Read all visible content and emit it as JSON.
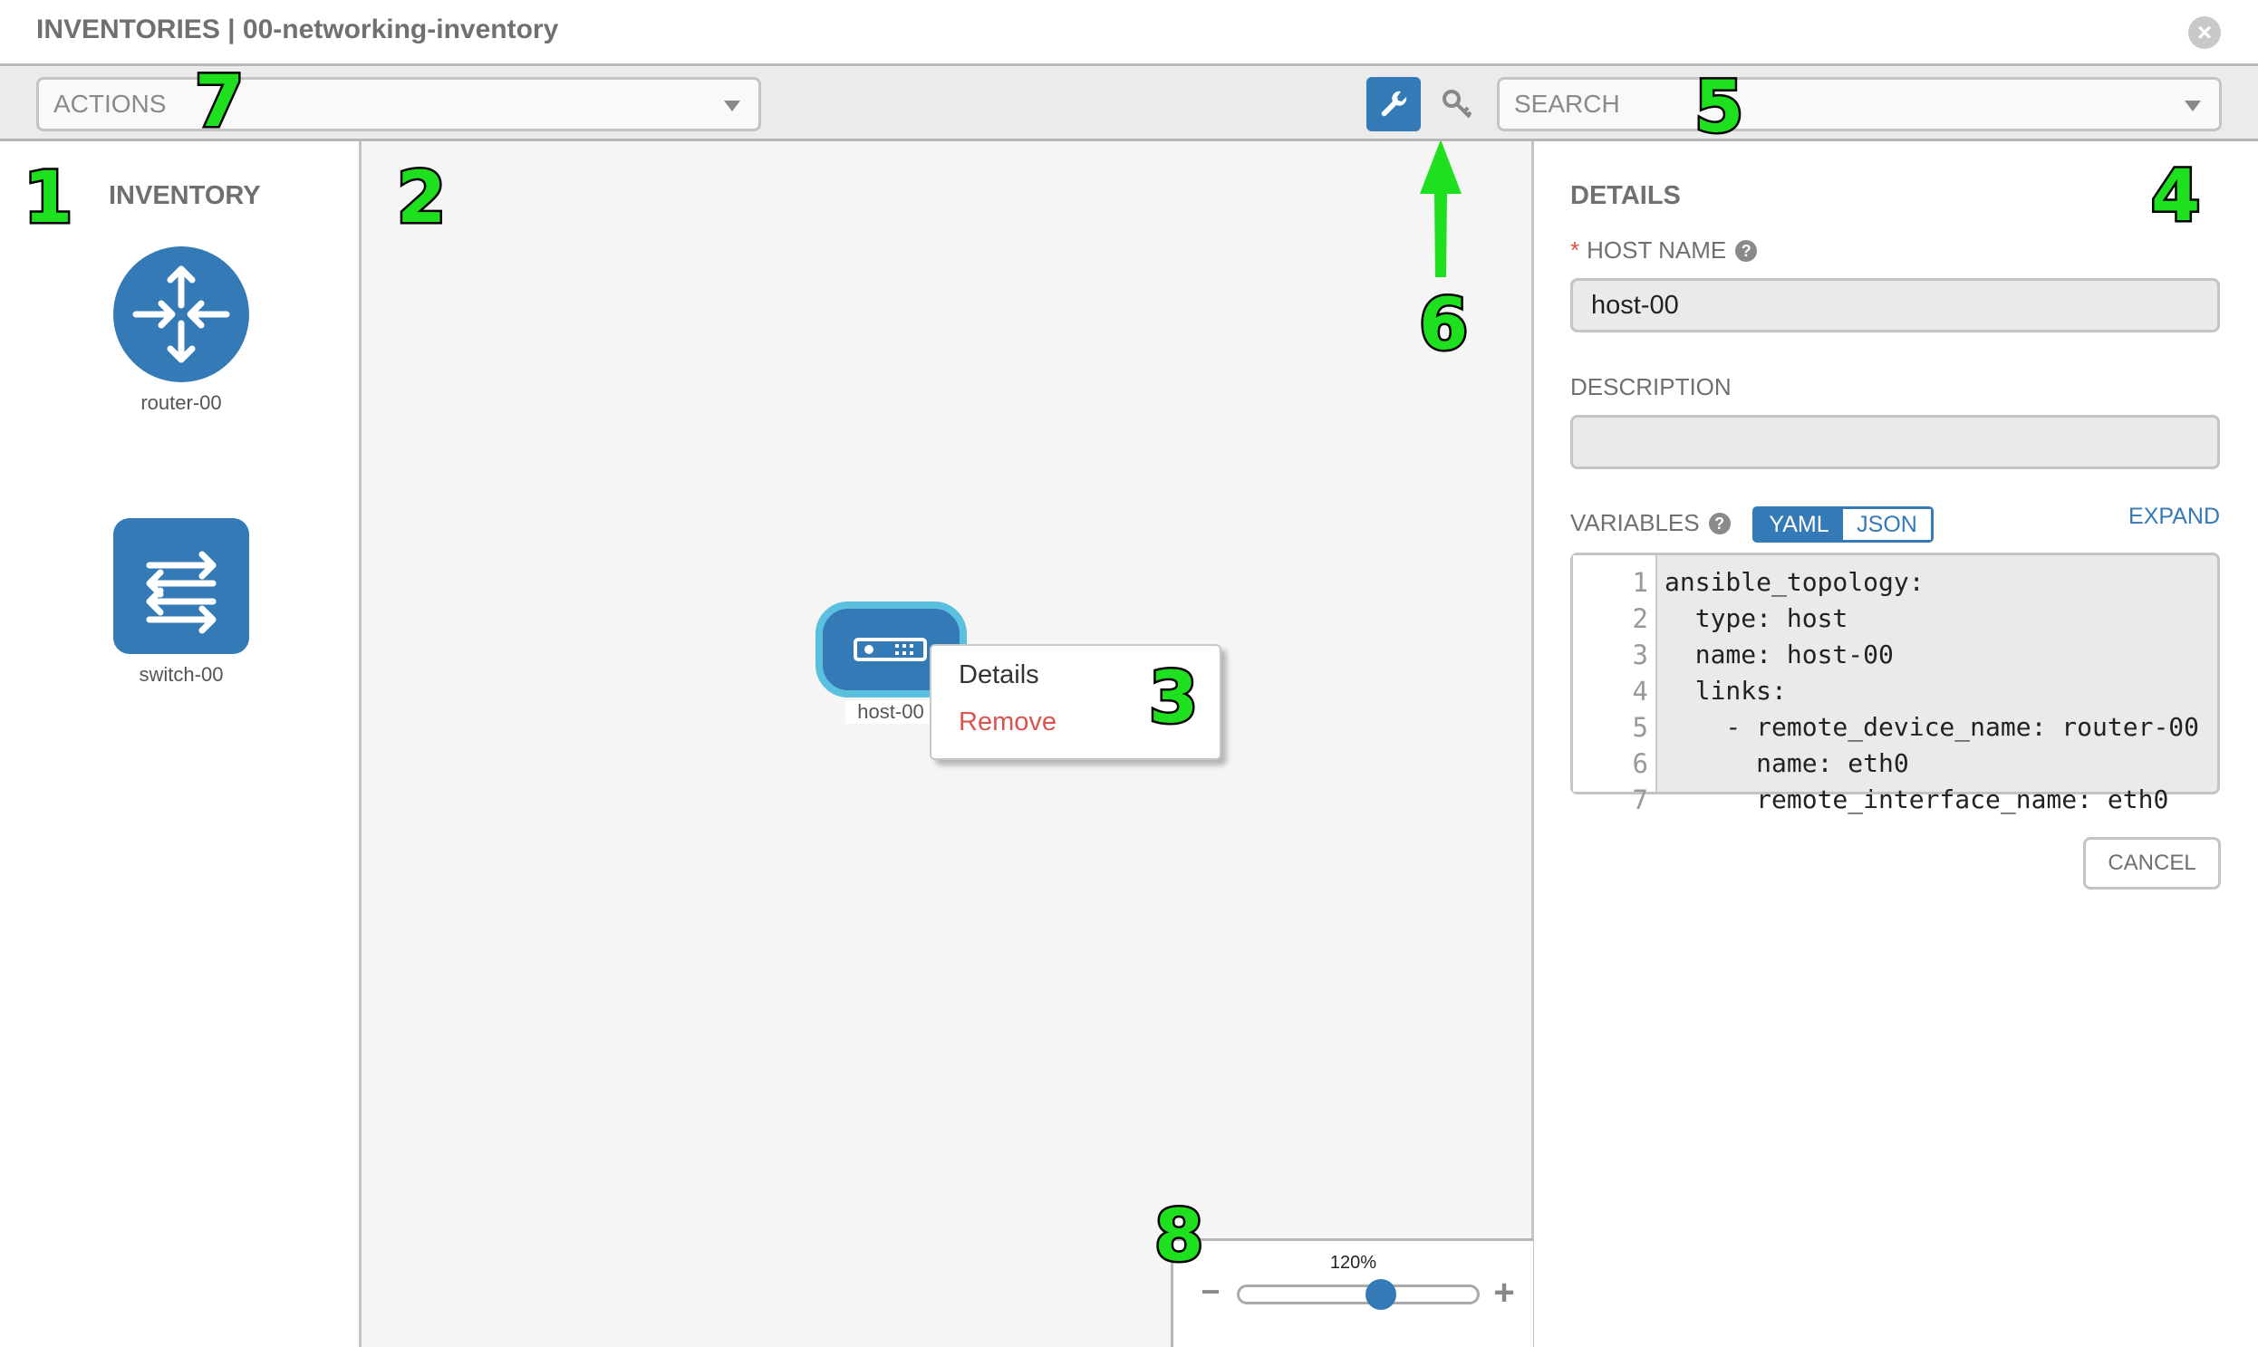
{
  "header": {
    "title": "INVENTORIES | 00-networking-inventory",
    "close_icon": "close-circle-icon"
  },
  "toolbar": {
    "actions_placeholder": "ACTIONS",
    "search_placeholder": "SEARCH",
    "wrench_icon": "wrench-icon",
    "key_icon": "key-icon"
  },
  "inventory": {
    "title": "INVENTORY",
    "items": [
      {
        "label": "router-00",
        "icon": "router-icon"
      },
      {
        "label": "switch-00",
        "icon": "switch-icon"
      }
    ]
  },
  "canvas": {
    "host": {
      "label": "host-00",
      "icon": "server-icon"
    },
    "context_menu": {
      "details": "Details",
      "remove": "Remove"
    },
    "zoom": {
      "value": "120%",
      "level_percent": 120,
      "minus": "−",
      "plus": "+"
    }
  },
  "details": {
    "title": "DETAILS",
    "host_name_label": "HOST NAME",
    "host_name_value": "host-00",
    "required_mark": "*",
    "description_label": "DESCRIPTION",
    "description_value": "",
    "variables_label": "VARIABLES",
    "yaml": "YAML",
    "json": "JSON",
    "expand": "EXPAND",
    "cancel": "CANCEL",
    "code_lines": [
      "ansible_topology:",
      "  type: host",
      "  name: host-00",
      "  links:",
      "    - remote_device_name: router-00",
      "      name: eth0",
      "      remote_interface_name: eth0"
    ]
  },
  "annotations": [
    "1",
    "2",
    "3",
    "4",
    "5",
    "6",
    "7",
    "8"
  ],
  "colors": {
    "primary": "#337ab7",
    "selected_border": "#5bc0de",
    "danger": "#d9534f",
    "annotation": "#1fe01f"
  }
}
